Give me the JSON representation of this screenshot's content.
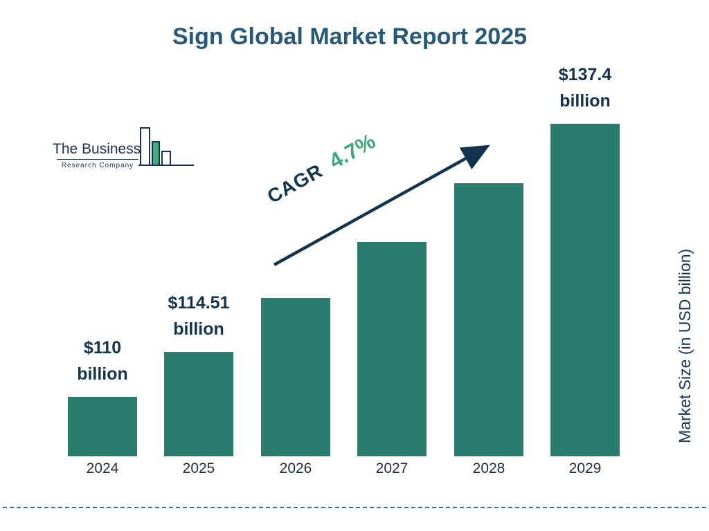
{
  "page": {
    "title": "Sign Global Market Report 2025"
  },
  "logo": {
    "line1": "The Business",
    "line2": "Research Company"
  },
  "cagr": {
    "label": "CAGR",
    "value": "4.7%"
  },
  "y_axis_label": "Market Size (in USD billion)",
  "colors": {
    "bar": "#2a7d6e",
    "title": "#265a78",
    "navy": "#14334e",
    "green_accent": "#3fa878",
    "dashed_line": "#2a7d6e"
  },
  "chart_data": {
    "type": "bar",
    "title": "Sign Global Market Report 2025",
    "categories": [
      "2024",
      "2025",
      "2026",
      "2027",
      "2028",
      "2029"
    ],
    "values": [
      110,
      114.51,
      119.9,
      125.5,
      131.4,
      137.4
    ],
    "unit": "USD billion",
    "ylabel": "Market Size (in USD billion)",
    "cagr_percent": 4.7,
    "bar_color": "#2a7d6e",
    "value_labels": [
      [
        "$110",
        "billion"
      ],
      [
        "$114.51",
        "billion"
      ],
      null,
      null,
      null,
      [
        "$137.4",
        "billion"
      ]
    ],
    "legend": "none",
    "grid": "off",
    "note": "only 2024, 2025 and 2029 values are labeled on the chart"
  }
}
